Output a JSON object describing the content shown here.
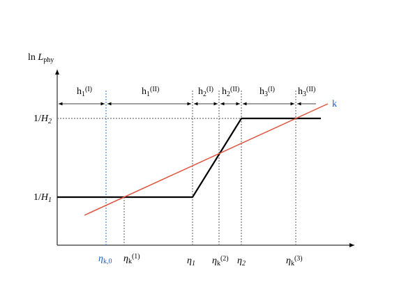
{
  "axis_label": {
    "base": "ln ",
    "var": "L",
    "sub": "phy"
  },
  "y_labels": [
    {
      "text": "1/",
      "var": "H",
      "sub": "2"
    },
    {
      "text": "1/",
      "var": "H",
      "sub": "1"
    }
  ],
  "segments": [
    {
      "base": "h",
      "sub": "1",
      "sup": "(I)"
    },
    {
      "base": "h",
      "sub": "1",
      "sup": "(II)"
    },
    {
      "base": "h",
      "sub": "2",
      "sup": "(I)"
    },
    {
      "base": "h",
      "sub": "2",
      "sup": "(II)"
    },
    {
      "base": "h",
      "sub": "3",
      "sup": "(I)"
    },
    {
      "base": "h",
      "sub": "3",
      "sup": "(II)"
    }
  ],
  "line_label": "k",
  "x_labels": [
    {
      "var": "η",
      "sub": "k,0"
    },
    {
      "var": "η",
      "sub": "k",
      "sup": "(1)"
    },
    {
      "var": "η",
      "sub": "1"
    },
    {
      "var": "η",
      "sub": "k",
      "sup": "(2)"
    },
    {
      "var": "η",
      "sub": "2"
    },
    {
      "var": "η",
      "sub": "k",
      "sup": "(3)"
    }
  ]
}
